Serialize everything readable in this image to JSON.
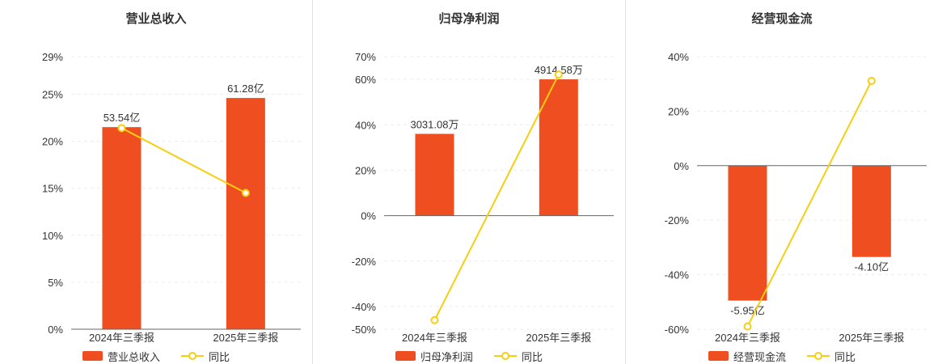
{
  "colors": {
    "bar": "#ee4e20",
    "line": "#f8ce10",
    "axis": "#666666",
    "grid": "#ececec",
    "text": "#333333",
    "divider": "#e4e4e4"
  },
  "chart_data": [
    {
      "type": "bar",
      "title": "营业总收入",
      "categories": [
        "2024年三季报",
        "2025年三季报"
      ],
      "bar_series": {
        "name": "营业总收入",
        "labels": [
          "53.54亿",
          "61.28亿"
        ],
        "axis_heights": [
          21.5,
          24.6
        ]
      },
      "line_series": {
        "name": "同比",
        "values_pct": [
          21.4,
          14.5
        ]
      },
      "y_ticks": [
        29,
        25,
        20,
        15,
        10,
        5,
        0
      ],
      "ylim": [
        0,
        29
      ],
      "legend": [
        "营业总收入",
        "同比"
      ],
      "legend_position": "bottom",
      "grid": "dashed"
    },
    {
      "type": "bar",
      "title": "归母净利润",
      "categories": [
        "2024年三季报",
        "2025年三季报"
      ],
      "bar_series": {
        "name": "归母净利润",
        "labels": [
          "3031.08万",
          "4914.58万"
        ],
        "axis_heights": [
          36,
          60
        ]
      },
      "line_series": {
        "name": "同比",
        "values_pct": [
          -46,
          62.1
        ]
      },
      "y_ticks": [
        70,
        60,
        40,
        20,
        0,
        -20,
        -40,
        -50
      ],
      "ylim": [
        -50,
        70
      ],
      "legend": [
        "归母净利润",
        "同比"
      ],
      "legend_position": "bottom",
      "grid": "dashed"
    },
    {
      "type": "bar",
      "title": "经营现金流",
      "categories": [
        "2024年三季报",
        "2025年三季报"
      ],
      "bar_series": {
        "name": "经营现金流",
        "labels": [
          "-5.95亿",
          "-4.10亿"
        ],
        "axis_heights": [
          -49.5,
          -33.5
        ]
      },
      "line_series": {
        "name": "同比",
        "values_pct": [
          -59,
          31.1
        ]
      },
      "y_ticks": [
        40,
        20,
        0,
        -20,
        -40,
        -60
      ],
      "ylim": [
        -60,
        40
      ],
      "legend": [
        "经营现金流",
        "同比"
      ],
      "legend_position": "bottom",
      "grid": "dashed"
    }
  ]
}
